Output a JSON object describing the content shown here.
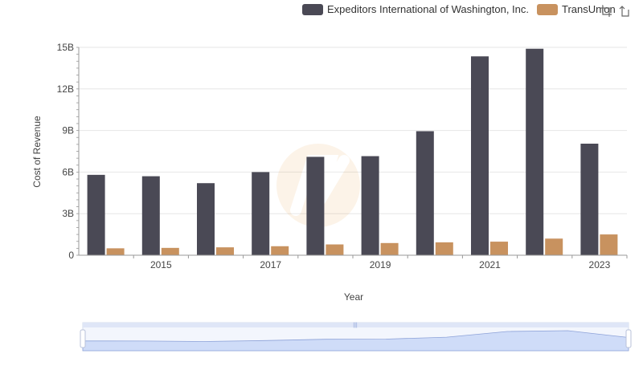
{
  "legend": {
    "items": [
      {
        "name": "Expeditors International of Washington, Inc.",
        "color": "#4a4955"
      },
      {
        "name": "TransUnion",
        "color": "#c8925f"
      }
    ]
  },
  "toolbox": {
    "restore_icon": "restore-icon",
    "zoom_icon": "zoom-icon"
  },
  "chart_data": {
    "type": "bar",
    "title": "",
    "xlabel": "Year",
    "ylabel": "Cost of Revenue",
    "categories": [
      "2014",
      "2015",
      "2016",
      "2017",
      "2018",
      "2019",
      "2020",
      "2021",
      "2022",
      "2023"
    ],
    "x_tick_labels": [
      "2015",
      "2017",
      "2019",
      "2021",
      "2023"
    ],
    "y_tick_labels": [
      "0",
      "3B",
      "6B",
      "9B",
      "12B",
      "15B"
    ],
    "ylim": [
      0,
      15
    ],
    "y_unit": "billions",
    "series": [
      {
        "name": "Expeditors International of Washington, Inc.",
        "color": "#4a4955",
        "values": [
          5.8,
          5.7,
          5.2,
          6.0,
          7.1,
          7.15,
          8.95,
          14.35,
          14.9,
          8.05
        ]
      },
      {
        "name": "TransUnion",
        "color": "#c8925f",
        "values": [
          0.5,
          0.53,
          0.57,
          0.65,
          0.78,
          0.88,
          0.93,
          0.98,
          1.2,
          1.5
        ]
      }
    ],
    "grid": true,
    "legend_position": "top-right",
    "data_zoom": true
  }
}
